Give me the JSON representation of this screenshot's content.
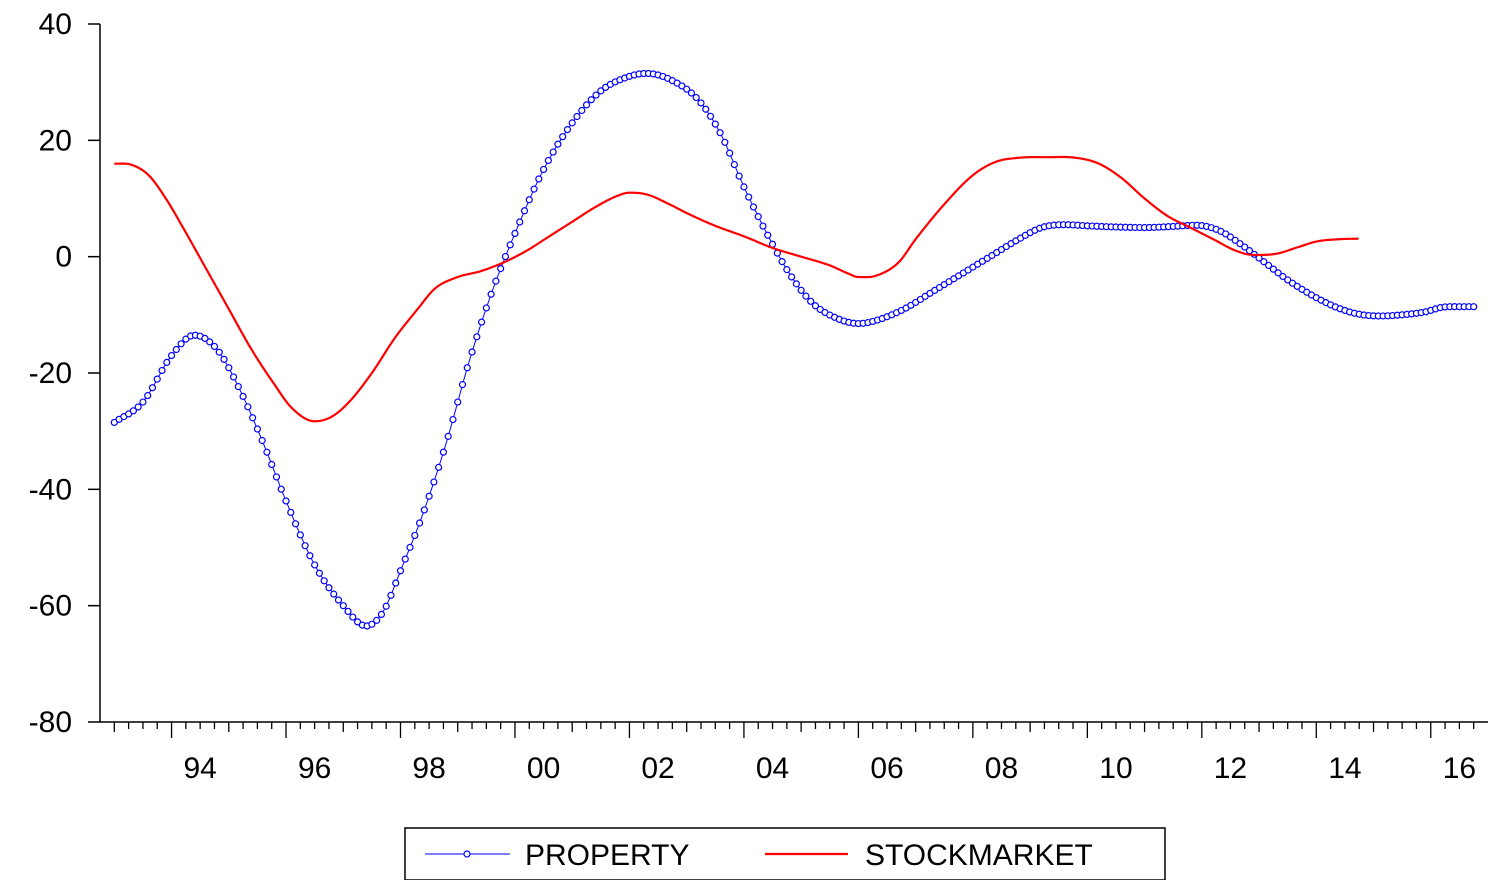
{
  "chart_data": {
    "type": "line",
    "title": "",
    "xlabel": "",
    "ylabel": "",
    "x_start": 1993.0,
    "x_end": 2016.75,
    "xlim": [
      1992.75,
      2017.0
    ],
    "ylim": [
      -80,
      40
    ],
    "y_ticks": [
      "40",
      "20",
      "0",
      "-20",
      "-40",
      "-60",
      "-80"
    ],
    "x_tick_labels": [
      {
        "year": 1994,
        "label": "94"
      },
      {
        "year": 1996,
        "label": "96"
      },
      {
        "year": 1998,
        "label": "98"
      },
      {
        "year": 2000,
        "label": "00"
      },
      {
        "year": 2002,
        "label": "02"
      },
      {
        "year": 2004,
        "label": "04"
      },
      {
        "year": 2006,
        "label": "06"
      },
      {
        "year": 2008,
        "label": "08"
      },
      {
        "year": 2010,
        "label": "10"
      },
      {
        "year": 2012,
        "label": "12"
      },
      {
        "year": 2014,
        "label": "14"
      },
      {
        "year": 2016,
        "label": "16"
      }
    ],
    "grid": false,
    "legend": "bottom-center",
    "series": [
      {
        "name": "PROPERTY",
        "color": "#0000ff",
        "marker": "circle",
        "points": [
          [
            1993.0,
            -28.5
          ],
          [
            1993.5,
            -25
          ],
          [
            1994.0,
            -17
          ],
          [
            1994.4,
            -13.5
          ],
          [
            1994.8,
            -16
          ],
          [
            1995.2,
            -23
          ],
          [
            1995.6,
            -32
          ],
          [
            1996.0,
            -42
          ],
          [
            1996.5,
            -53
          ],
          [
            1997.0,
            -60
          ],
          [
            1997.4,
            -63.5
          ],
          [
            1997.7,
            -61
          ],
          [
            1998.0,
            -54
          ],
          [
            1998.4,
            -44
          ],
          [
            1998.8,
            -32
          ],
          [
            1999.2,
            -18
          ],
          [
            1999.6,
            -6
          ],
          [
            2000.0,
            4
          ],
          [
            2000.5,
            15
          ],
          [
            2001.0,
            23
          ],
          [
            2001.5,
            28.5
          ],
          [
            2002.0,
            31
          ],
          [
            2002.3,
            31.5
          ],
          [
            2002.7,
            30.5
          ],
          [
            2003.2,
            27
          ],
          [
            2003.6,
            21
          ],
          [
            2004.0,
            12
          ],
          [
            2004.4,
            4
          ],
          [
            2004.8,
            -3
          ],
          [
            2005.2,
            -8
          ],
          [
            2005.6,
            -10.5
          ],
          [
            2006.0,
            -11.5
          ],
          [
            2006.3,
            -11
          ],
          [
            2006.8,
            -9
          ],
          [
            2007.3,
            -6
          ],
          [
            2007.8,
            -3
          ],
          [
            2008.3,
            0
          ],
          [
            2008.8,
            3
          ],
          [
            2009.2,
            5
          ],
          [
            2009.6,
            5.5
          ],
          [
            2010.0,
            5.3
          ],
          [
            2010.5,
            5.1
          ],
          [
            2011.0,
            5.0
          ],
          [
            2011.5,
            5.2
          ],
          [
            2011.9,
            5.4
          ],
          [
            2012.3,
            4.5
          ],
          [
            2012.7,
            2
          ],
          [
            2013.1,
            -1
          ],
          [
            2013.5,
            -4
          ],
          [
            2013.9,
            -6.5
          ],
          [
            2014.3,
            -8.5
          ],
          [
            2014.7,
            -9.8
          ],
          [
            2015.1,
            -10.2
          ],
          [
            2015.5,
            -10
          ],
          [
            2015.9,
            -9.5
          ],
          [
            2016.2,
            -8.7
          ],
          [
            2016.5,
            -8.6
          ],
          [
            2016.75,
            -8.6
          ]
        ]
      },
      {
        "name": "STOCKMARKET",
        "color": "#ff0000",
        "marker": "none",
        "points": [
          [
            1993.0,
            16
          ],
          [
            1993.3,
            15.8
          ],
          [
            1993.6,
            14
          ],
          [
            1993.9,
            10
          ],
          [
            1994.2,
            5
          ],
          [
            1994.6,
            -2
          ],
          [
            1995.0,
            -9
          ],
          [
            1995.4,
            -16
          ],
          [
            1995.8,
            -22
          ],
          [
            1996.1,
            -26
          ],
          [
            1996.5,
            -28.3
          ],
          [
            1996.8,
            -27.5
          ],
          [
            1997.1,
            -25
          ],
          [
            1997.5,
            -20
          ],
          [
            1997.9,
            -14
          ],
          [
            1998.3,
            -9
          ],
          [
            1998.6,
            -5.5
          ],
          [
            1999.0,
            -3.5
          ],
          [
            1999.4,
            -2.5
          ],
          [
            1999.8,
            -1
          ],
          [
            2000.2,
            1
          ],
          [
            2000.6,
            3.5
          ],
          [
            2001.0,
            6
          ],
          [
            2001.4,
            8.5
          ],
          [
            2001.8,
            10.5
          ],
          [
            2002.0,
            11
          ],
          [
            2002.3,
            10.7
          ],
          [
            2002.7,
            9
          ],
          [
            2003.0,
            7.5
          ],
          [
            2003.5,
            5.3
          ],
          [
            2004.0,
            3.5
          ],
          [
            2004.5,
            1.5
          ],
          [
            2005.0,
            0
          ],
          [
            2005.5,
            -1.5
          ],
          [
            2005.8,
            -2.8
          ],
          [
            2006.0,
            -3.5
          ],
          [
            2006.3,
            -3.3
          ],
          [
            2006.7,
            -1
          ],
          [
            2007.0,
            3
          ],
          [
            2007.5,
            9
          ],
          [
            2008.0,
            14
          ],
          [
            2008.4,
            16.3
          ],
          [
            2008.8,
            17
          ],
          [
            2009.3,
            17.1
          ],
          [
            2009.8,
            17
          ],
          [
            2010.2,
            16
          ],
          [
            2010.6,
            13.5
          ],
          [
            2011.0,
            10
          ],
          [
            2011.4,
            7
          ],
          [
            2011.8,
            5
          ],
          [
            2012.2,
            3
          ],
          [
            2012.6,
            1
          ],
          [
            2012.9,
            0.3
          ],
          [
            2013.3,
            0.5
          ],
          [
            2013.7,
            1.7
          ],
          [
            2014.0,
            2.6
          ],
          [
            2014.4,
            3
          ],
          [
            2014.75,
            3.1
          ]
        ]
      }
    ]
  }
}
